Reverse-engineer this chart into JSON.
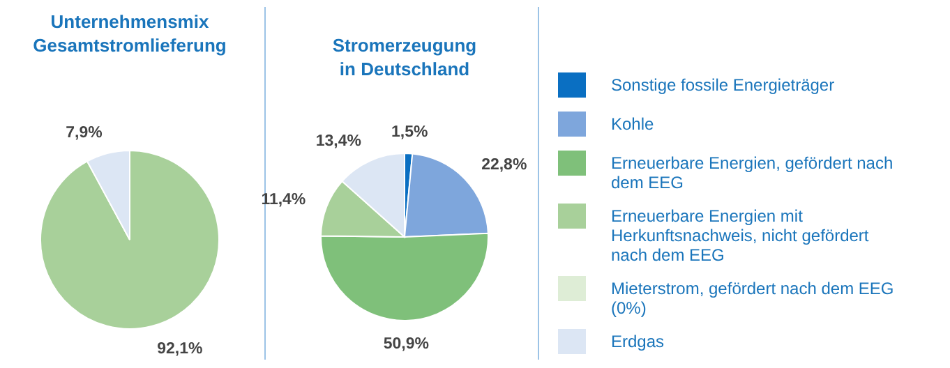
{
  "chart_data": [
    {
      "type": "pie",
      "title": "Unternehmensmix Gesamtstromlieferung",
      "categories": [
        "Sonstige fossile Energieträger",
        "Kohle",
        "Erneuerbare Energien, gefördert nach dem EEG",
        "Erneuerbare Energien mit Herkunftsnachweis, nicht gefördert nach dem EEG",
        "Mieterstrom, gefördert nach dem EEG (0%)",
        "Erdgas"
      ],
      "values": [
        0,
        0,
        0,
        92.1,
        0,
        7.9
      ],
      "value_labels": [
        null,
        null,
        null,
        "92,1%",
        null,
        "7,9%"
      ],
      "colors": [
        "#0a6fc2",
        "#7ea6dc",
        "#7fc07a",
        "#a8d09a",
        "#deedd6",
        "#dce6f4"
      ],
      "legend": "right"
    },
    {
      "type": "pie",
      "title": "Stromerzeugung in Deutschland",
      "categories": [
        null,
        null,
        null,
        null,
        null
      ],
      "values": [
        1.5,
        22.8,
        50.9,
        11.4,
        13.4
      ],
      "value_labels": [
        "1,5%",
        "22,8%",
        "50,9%",
        "11,4%",
        "13,4%"
      ],
      "colors": [
        "#0a6fc2",
        "#7ea6dc",
        "#7fc07a",
        "#a8d09a",
        "#dce6f4"
      ]
    }
  ]
}
